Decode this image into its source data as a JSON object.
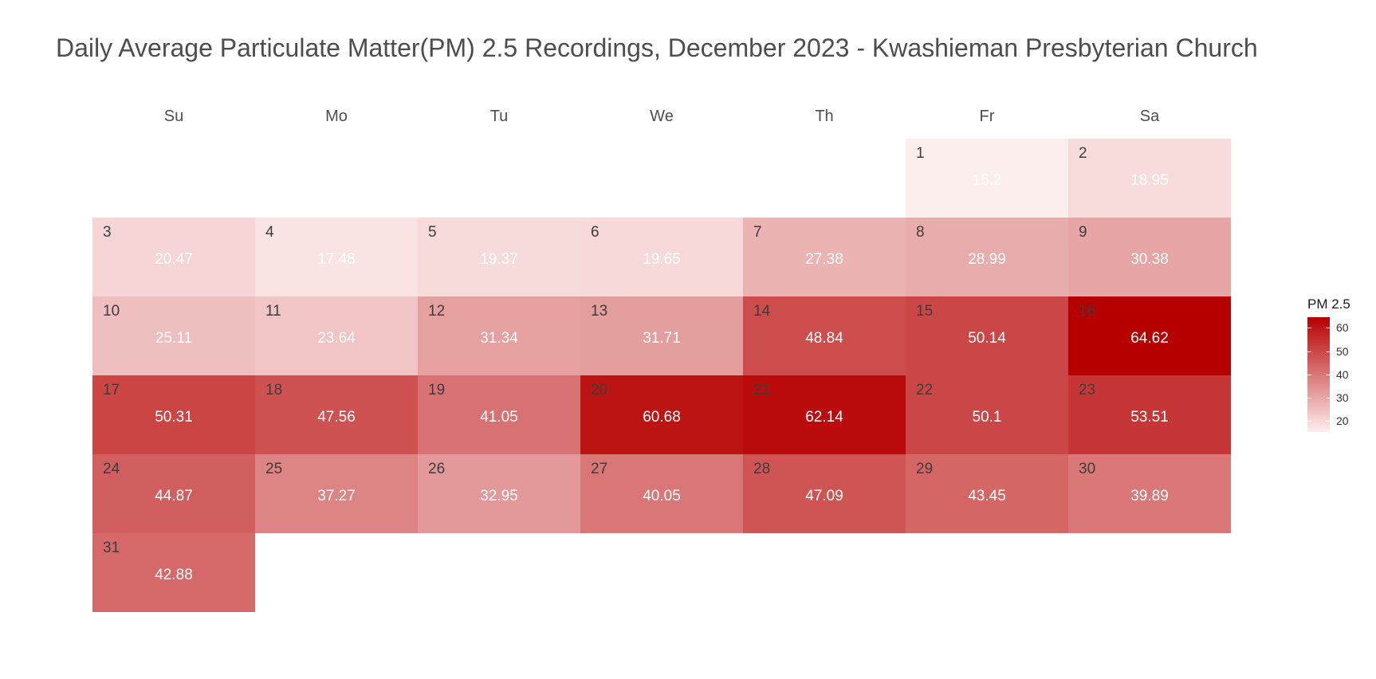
{
  "chart_data": {
    "type": "heatmap",
    "title": "Daily Average Particulate Matter(PM) 2.5 Recordings, December 2023 - Kwashieman Presbyterian Church",
    "weekdays": [
      "Su",
      "Mo",
      "Tu",
      "We",
      "Th",
      "Fr",
      "Sa"
    ],
    "first_weekday_index": 5,
    "days": [
      {
        "day": "1",
        "value": 15.2
      },
      {
        "day": "2",
        "value": 18.95
      },
      {
        "day": "3",
        "value": 20.47
      },
      {
        "day": "4",
        "value": 17.48
      },
      {
        "day": "5",
        "value": 19.37
      },
      {
        "day": "6",
        "value": 19.65
      },
      {
        "day": "7",
        "value": 27.38
      },
      {
        "day": "8",
        "value": 28.99
      },
      {
        "day": "9",
        "value": 30.38
      },
      {
        "day": "10",
        "value": 25.11
      },
      {
        "day": "11",
        "value": 23.64
      },
      {
        "day": "12",
        "value": 31.34
      },
      {
        "day": "13",
        "value": 31.71
      },
      {
        "day": "14",
        "value": 48.84
      },
      {
        "day": "15",
        "value": 50.14
      },
      {
        "day": "16",
        "value": 64.62
      },
      {
        "day": "17",
        "value": 50.31
      },
      {
        "day": "18",
        "value": 47.56
      },
      {
        "day": "19",
        "value": 41.05
      },
      {
        "day": "20",
        "value": 60.68
      },
      {
        "day": "21",
        "value": 62.14
      },
      {
        "day": "22",
        "value": 50.1
      },
      {
        "day": "23",
        "value": 53.51
      },
      {
        "day": "24",
        "value": 44.87
      },
      {
        "day": "25",
        "value": 37.27
      },
      {
        "day": "26",
        "value": 32.95
      },
      {
        "day": "27",
        "value": 40.05
      },
      {
        "day": "28",
        "value": 47.09
      },
      {
        "day": "29",
        "value": 43.45
      },
      {
        "day": "30",
        "value": 39.89
      },
      {
        "day": "31",
        "value": 42.88
      }
    ],
    "color_scale": {
      "low": "#fdeeee",
      "high": "#b60000",
      "min": 15.2,
      "max": 64.62
    },
    "legend": {
      "title": "PM 2.5",
      "ticks": [
        "20",
        "30",
        "40",
        "50",
        "60"
      ],
      "tick_values": [
        20,
        30,
        40,
        50,
        60
      ],
      "placement": "right"
    }
  }
}
